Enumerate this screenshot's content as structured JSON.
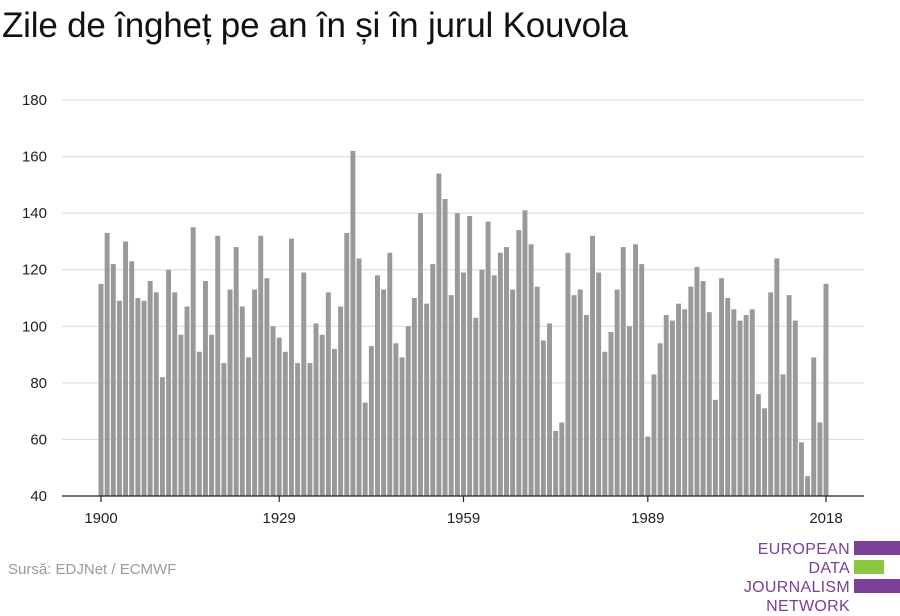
{
  "title": "Zile de îngheț pe an în și în jurul Kouvola",
  "source": "Sursă: EDJNet / ECMWF",
  "logo": {
    "line1": "EUROPEAN",
    "line2": "DATA JOURNALISM",
    "line3": "NETWORK",
    "colors": {
      "purple": "#7b3f98",
      "green": "#8dc63f"
    }
  },
  "colors": {
    "bar": "#999999",
    "grid": "#d9d9d9",
    "axis": "#222222"
  },
  "chart_data": {
    "type": "bar",
    "title": "Zile de îngheț pe an în și în jurul Kouvola",
    "xlabel": "",
    "ylabel": "",
    "ylim": [
      40,
      180
    ],
    "yticks": [
      40,
      60,
      80,
      100,
      120,
      140,
      160,
      180
    ],
    "xticks": [
      1900,
      1929,
      1959,
      1989,
      2018
    ],
    "grid": true,
    "x": [
      1900,
      1901,
      1902,
      1903,
      1904,
      1905,
      1906,
      1907,
      1908,
      1909,
      1910,
      1911,
      1912,
      1913,
      1914,
      1915,
      1916,
      1917,
      1918,
      1919,
      1920,
      1921,
      1922,
      1923,
      1924,
      1925,
      1926,
      1927,
      1928,
      1929,
      1930,
      1931,
      1932,
      1933,
      1934,
      1935,
      1936,
      1937,
      1938,
      1939,
      1940,
      1941,
      1942,
      1943,
      1944,
      1945,
      1946,
      1947,
      1948,
      1949,
      1950,
      1951,
      1952,
      1953,
      1954,
      1955,
      1956,
      1957,
      1958,
      1959,
      1960,
      1961,
      1962,
      1963,
      1964,
      1965,
      1966,
      1967,
      1968,
      1969,
      1970,
      1971,
      1972,
      1973,
      1974,
      1975,
      1976,
      1977,
      1978,
      1979,
      1980,
      1981,
      1982,
      1983,
      1984,
      1985,
      1986,
      1987,
      1988,
      1989,
      1990,
      1991,
      1992,
      1993,
      1994,
      1995,
      1996,
      1997,
      1998,
      1999,
      2000,
      2001,
      2002,
      2003,
      2004,
      2005,
      2006,
      2007,
      2008,
      2009,
      2010,
      2011,
      2012,
      2013,
      2014,
      2015,
      2016,
      2017,
      2018
    ],
    "values": [
      115,
      133,
      122,
      109,
      130,
      123,
      110,
      109,
      116,
      112,
      82,
      120,
      112,
      97,
      107,
      135,
      91,
      116,
      97,
      132,
      87,
      113,
      128,
      107,
      89,
      113,
      132,
      117,
      100,
      96,
      91,
      131,
      87,
      119,
      87,
      101,
      97,
      112,
      92,
      107,
      133,
      162,
      124,
      73,
      93,
      118,
      113,
      126,
      94,
      89,
      100,
      110,
      140,
      108,
      122,
      154,
      145,
      111,
      140,
      119,
      139,
      103,
      120,
      137,
      118,
      126,
      128,
      113,
      134,
      141,
      129,
      114,
      95,
      101,
      63,
      66,
      126,
      111,
      113,
      104,
      132,
      119,
      91,
      98,
      113,
      128,
      100,
      129,
      122,
      61,
      83,
      94,
      104,
      102,
      108,
      106,
      114,
      121,
      116,
      105,
      74,
      117,
      110,
      106,
      102,
      104,
      106,
      76,
      71,
      112,
      124,
      83,
      111,
      102,
      59,
      47,
      89,
      66,
      115
    ]
  }
}
